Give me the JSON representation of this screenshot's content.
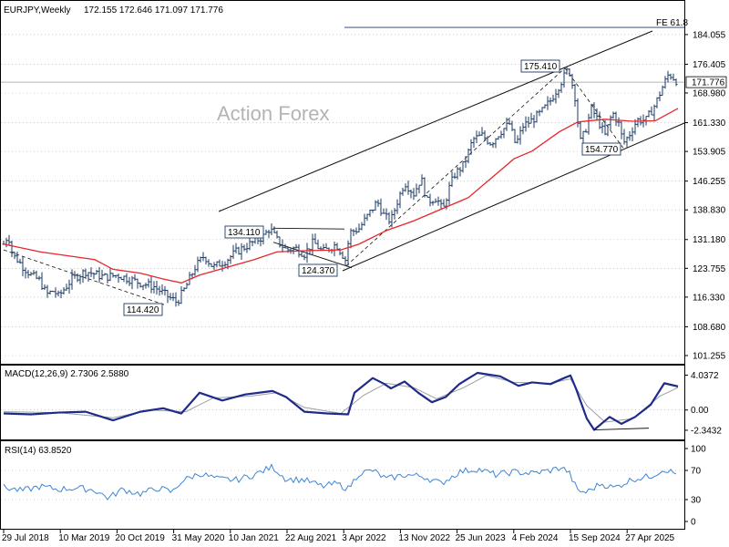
{
  "header": {
    "symbol": "EURJPY,Weekly",
    "ohlc": "172.155 172.646 171.097 171.776"
  },
  "watermark": "Action Forex",
  "colors": {
    "price": "#1b3a63",
    "ma": "#e8262b",
    "macd": "#1f2a8a",
    "signal": "#9aa0a6",
    "rsi": "#3a86d6",
    "grid": "#a8a8a8"
  },
  "chart_data": [
    {
      "type": "candlestick",
      "title": "EURJPY,Weekly",
      "ylim": [
        101.255,
        188.5
      ],
      "yticks": [
        "184.055",
        "176.405",
        "168.980",
        "161.330",
        "153.905",
        "146.255",
        "138.830",
        "131.180",
        "123.755",
        "116.330",
        "108.680",
        "101.255"
      ],
      "current_price": "171.776",
      "reference_line": {
        "label": "FE 61.8",
        "value": 185.9
      },
      "annotations": [
        {
          "label": "134.110",
          "value": 134.11,
          "date": "2021-01"
        },
        {
          "label": "124.370",
          "value": 124.37,
          "date": "2022-03"
        },
        {
          "label": "114.420",
          "value": 114.42,
          "date": "2020-05"
        },
        {
          "label": "175.410",
          "value": 175.41,
          "date": "2024-07"
        },
        {
          "label": "154.770",
          "value": 154.77,
          "date": "2024-09"
        }
      ],
      "series": [
        {
          "name": "price",
          "points": [
            [
              0,
              130
            ],
            [
              5,
              132.5
            ],
            [
              10,
              127
            ],
            [
              15,
              126
            ],
            [
              20,
              124.5
            ],
            [
              30,
              122
            ],
            [
              40,
              120.5
            ],
            [
              47,
              117
            ],
            [
              55,
              118
            ],
            [
              60,
              116.5
            ],
            [
              75,
              121
            ],
            [
              90,
              123
            ],
            [
              110,
              121.5
            ],
            [
              125,
              122
            ],
            [
              150,
              120
            ],
            [
              165,
              119
            ],
            [
              180,
              116.5
            ],
            [
              190,
              115
            ],
            [
              200,
              119
            ],
            [
              210,
              124
            ],
            [
              220,
              127
            ],
            [
              230,
              124
            ],
            [
              245,
              126
            ],
            [
              255,
              128
            ],
            [
              270,
              130
            ],
            [
              285,
              132
            ],
            [
              292,
              134.1
            ],
            [
              300,
              131
            ],
            [
              310,
              128.5
            ],
            [
              320,
              129
            ],
            [
              330,
              127.5
            ],
            [
              340,
              130.5
            ],
            [
              350,
              128
            ],
            [
              365,
              130
            ],
            [
              375,
              126
            ],
            [
              380,
              133
            ],
            [
              390,
              134
            ],
            [
              400,
              137.5
            ],
            [
              410,
              141
            ],
            [
              418,
              137
            ],
            [
              425,
              136
            ],
            [
              432,
              141
            ],
            [
              440,
              146
            ],
            [
              450,
              143
            ],
            [
              458,
              147
            ],
            [
              465,
              141
            ],
            [
              475,
              142
            ],
            [
              482,
              138.5
            ],
            [
              488,
              144
            ],
            [
              495,
              148
            ],
            [
              505,
              150.5
            ],
            [
              515,
              157
            ],
            [
              525,
              158
            ],
            [
              535,
              156
            ],
            [
              545,
              159
            ],
            [
              555,
              161
            ],
            [
              562,
              155.5
            ],
            [
              570,
              160.5
            ],
            [
              580,
              162
            ],
            [
              590,
              164
            ],
            [
              600,
              167
            ],
            [
              612,
              172
            ],
            [
              620,
              175.4
            ],
            [
              628,
              167
            ],
            [
              632,
              156
            ],
            [
              638,
              159
            ],
            [
              645,
              165
            ],
            [
              652,
              162
            ],
            [
              660,
              158
            ],
            [
              668,
              164
            ],
            [
              675,
              161
            ],
            [
              680,
              156
            ],
            [
              686,
              158
            ],
            [
              695,
              162
            ],
            [
              705,
              162
            ],
            [
              715,
              166
            ],
            [
              722,
              170
            ],
            [
              730,
              174
            ],
            [
              740,
              171.8
            ]
          ]
        },
        {
          "name": "MA",
          "points": [
            [
              0,
              130
            ],
            [
              40,
              128
            ],
            [
              100,
              126
            ],
            [
              120,
              123.5
            ],
            [
              150,
              122.5
            ],
            [
              175,
              121
            ],
            [
              195,
              120
            ],
            [
              215,
              122
            ],
            [
              245,
              124
            ],
            [
              275,
              126
            ],
            [
              300,
              128
            ],
            [
              330,
              128.3
            ],
            [
              370,
              128.5
            ],
            [
              390,
              130
            ],
            [
              420,
              133.5
            ],
            [
              450,
              136
            ],
            [
              480,
              139
            ],
            [
              510,
              142
            ],
            [
              540,
              148
            ],
            [
              560,
              152
            ],
            [
              580,
              154
            ],
            [
              610,
              159
            ],
            [
              630,
              161.5
            ],
            [
              660,
              162.2
            ],
            [
              690,
              161.7
            ],
            [
              715,
              161.8
            ],
            [
              740,
              165
            ]
          ]
        }
      ]
    },
    {
      "type": "line",
      "title": "MACD(12,26,9) 2.7306 2.5880",
      "ylim": [
        -2.95,
        4.6
      ],
      "yticks": [
        "4.0372",
        "0.00",
        "-2.3432"
      ],
      "series": [
        {
          "name": "MACD",
          "points": [
            [
              0,
              -0.4
            ],
            [
              30,
              -0.5
            ],
            [
              60,
              -0.3
            ],
            [
              90,
              -0.2
            ],
            [
              120,
              -1.2
            ],
            [
              150,
              -0.2
            ],
            [
              175,
              0.2
            ],
            [
              195,
              -0.4
            ],
            [
              215,
              2.0
            ],
            [
              240,
              1.1
            ],
            [
              265,
              1.8
            ],
            [
              295,
              2.2
            ],
            [
              310,
              1.5
            ],
            [
              330,
              -0.2
            ],
            [
              355,
              -0.4
            ],
            [
              378,
              -0.5
            ],
            [
              385,
              2.0
            ],
            [
              405,
              3.7
            ],
            [
              418,
              3.0
            ],
            [
              425,
              2.5
            ],
            [
              440,
              3.3
            ],
            [
              455,
              2.0
            ],
            [
              470,
              0.9
            ],
            [
              485,
              1.5
            ],
            [
              500,
              3.0
            ],
            [
              520,
              4.3
            ],
            [
              545,
              3.9
            ],
            [
              565,
              2.8
            ],
            [
              580,
              3.2
            ],
            [
              600,
              3.0
            ],
            [
              615,
              3.7
            ],
            [
              622,
              4.0
            ],
            [
              628,
              2.5
            ],
            [
              640,
              -1.0
            ],
            [
              648,
              -2.3
            ],
            [
              665,
              -0.8
            ],
            [
              678,
              -1.6
            ],
            [
              693,
              -0.8
            ],
            [
              710,
              0.6
            ],
            [
              725,
              3.1
            ],
            [
              740,
              2.73
            ]
          ]
        },
        {
          "name": "signal",
          "points": [
            [
              0,
              -0.2
            ],
            [
              60,
              -0.3
            ],
            [
              120,
              -0.9
            ],
            [
              160,
              0.0
            ],
            [
              200,
              -0.2
            ],
            [
              230,
              1.4
            ],
            [
              270,
              1.6
            ],
            [
              300,
              2.0
            ],
            [
              330,
              0.3
            ],
            [
              370,
              -0.4
            ],
            [
              395,
              1.7
            ],
            [
              420,
              3.1
            ],
            [
              450,
              2.6
            ],
            [
              475,
              1.3
            ],
            [
              505,
              2.6
            ],
            [
              530,
              4.0
            ],
            [
              560,
              3.2
            ],
            [
              600,
              3.1
            ],
            [
              622,
              3.6
            ],
            [
              640,
              0.5
            ],
            [
              660,
              -1.4
            ],
            [
              690,
              -1.0
            ],
            [
              720,
              1.6
            ],
            [
              740,
              2.59
            ]
          ]
        },
        {
          "name": "support",
          "points": [
            [
              648,
              -2.3
            ],
            [
              708,
              -2.1
            ]
          ]
        }
      ]
    },
    {
      "type": "line",
      "title": "RSI(14) 63.8520",
      "ylim": [
        0,
        100
      ],
      "yticks": [
        "100",
        "70",
        "30",
        "0"
      ],
      "series": [
        {
          "name": "RSI",
          "points": [
            [
              0,
              47
            ],
            [
              20,
              42
            ],
            [
              40,
              48
            ],
            [
              60,
              44
            ],
            [
              80,
              46
            ],
            [
              100,
              43
            ],
            [
              115,
              32
            ],
            [
              130,
              44
            ],
            [
              150,
              38
            ],
            [
              170,
              46
            ],
            [
              185,
              40
            ],
            [
              195,
              55
            ],
            [
              215,
              66
            ],
            [
              235,
              58
            ],
            [
              255,
              57
            ],
            [
              275,
              64
            ],
            [
              295,
              75
            ],
            [
              310,
              58
            ],
            [
              330,
              57
            ],
            [
              350,
              48
            ],
            [
              365,
              52
            ],
            [
              378,
              45
            ],
            [
              390,
              66
            ],
            [
              405,
              70
            ],
            [
              420,
              58
            ],
            [
              440,
              64
            ],
            [
              460,
              62
            ],
            [
              480,
              52
            ],
            [
              500,
              68
            ],
            [
              520,
              72
            ],
            [
              540,
              64
            ],
            [
              560,
              68
            ],
            [
              580,
              66
            ],
            [
              600,
              70
            ],
            [
              612,
              74
            ],
            [
              620,
              68
            ],
            [
              630,
              42
            ],
            [
              640,
              40
            ],
            [
              655,
              52
            ],
            [
              670,
              46
            ],
            [
              690,
              58
            ],
            [
              710,
              62
            ],
            [
              725,
              72
            ],
            [
              740,
              63.85
            ]
          ]
        }
      ]
    }
  ],
  "x_axis": {
    "labels": [
      "29 Jul 2018",
      "10 Mar 2019",
      "20 Oct 2019",
      "31 May 2020",
      "10 Jan 2021",
      "22 Aug 2021",
      "3 Apr 2022",
      "13 Nov 2022",
      "25 Jun 2023",
      "4 Feb 2024",
      "15 Sep 2024",
      "27 Apr 2025"
    ]
  }
}
